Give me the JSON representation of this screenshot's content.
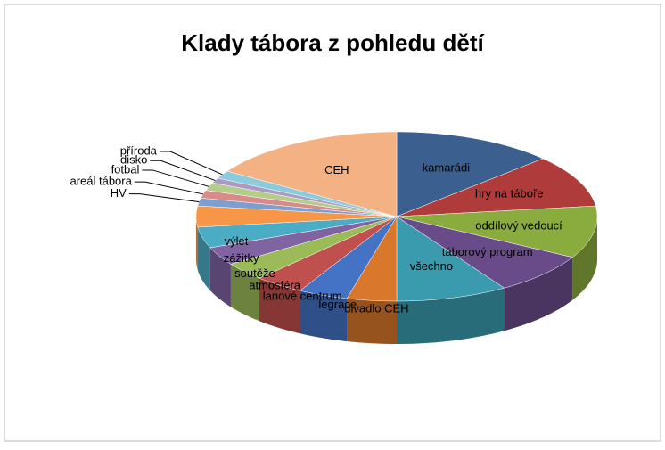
{
  "chart_data": {
    "type": "pie3d",
    "title": "Klady tábora z pohledu dětí",
    "categories": [
      "kamarádi",
      "hry na táboře",
      "oddílový vedoucí",
      "táborový program",
      "všechno",
      "divadlo CEH",
      "legrace",
      "lanové centrum",
      "atmosféra",
      "soutěže",
      "zážitky",
      "výlet",
      "HV",
      "areál tábora",
      "fotbal",
      "disko",
      "příroda",
      "CEH"
    ],
    "values": [
      13,
      10,
      10,
      8,
      9,
      4,
      4,
      4,
      3.5,
      3.5,
      4,
      4,
      1.5,
      1.5,
      1.5,
      1,
      1.5,
      16
    ],
    "colors": [
      "#3b5f8e",
      "#b03b3b",
      "#8aab3e",
      "#6a4b8a",
      "#3a9aae",
      "#d9782c",
      "#4472c4",
      "#c0504d",
      "#9bbb59",
      "#8064a2",
      "#4bacc6",
      "#f79646",
      "#7c9fd0",
      "#d98b8a",
      "#b5cc8a",
      "#a99bc4",
      "#8ccbdb",
      "#f4b183"
    ]
  }
}
